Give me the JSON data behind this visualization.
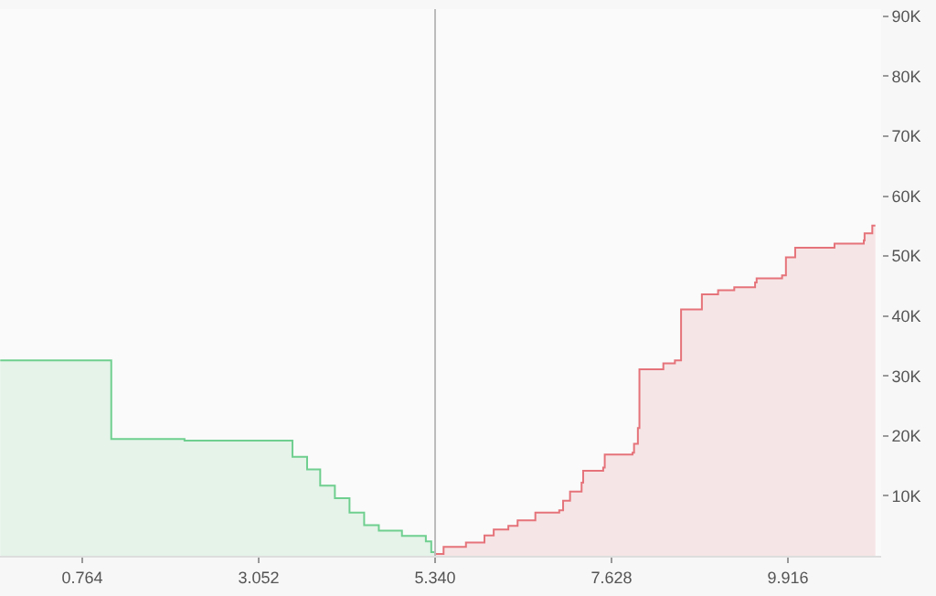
{
  "chart_data": {
    "type": "step",
    "series": [
      {
        "color": "#6fcf8f",
        "x": [
          -0.3,
          1.14,
          2.09,
          3.49,
          3.68,
          3.85,
          4.04,
          4.23,
          4.42,
          4.61,
          4.91,
          5.22,
          5.29,
          5.34
        ],
        "values": [
          32600,
          19500,
          19200,
          16500,
          14400,
          11700,
          9600,
          7200,
          5100,
          4200,
          3300,
          2400,
          600,
          0
        ]
      },
      {
        "color": "#e5737a",
        "x": [
          5.34,
          5.45,
          5.74,
          5.98,
          6.1,
          6.29,
          6.41,
          6.64,
          6.95,
          7.0,
          7.09,
          7.24,
          7.26,
          7.52,
          7.54,
          7.9,
          7.92,
          7.97,
          7.99,
          8.3,
          8.45,
          8.53,
          8.8,
          9.01,
          9.22,
          9.49,
          9.51,
          9.84,
          9.89,
          10.01,
          10.52,
          10.9,
          10.91,
          11.01,
          11.05
        ],
        "values": [
          300,
          1500,
          2200,
          3400,
          4400,
          5000,
          5900,
          7200,
          7600,
          9200,
          10700,
          12200,
          14200,
          14700,
          16900,
          17200,
          18700,
          21300,
          31100,
          32100,
          32600,
          41100,
          43600,
          44300,
          44800,
          45600,
          46300,
          46800,
          49800,
          51400,
          52100,
          52600,
          53800,
          55100,
          55100
        ]
      }
    ],
    "xlim": [
      -0.303,
      11.125
    ],
    "xticks": [
      0.764,
      3.052,
      {
        "value": 5.34,
        "label": "5.340"
      },
      7.628,
      9.916
    ],
    "ylim": [
      0,
      91200
    ],
    "yticks": [
      {
        "value": 10000,
        "label": "10K"
      },
      {
        "value": 20000,
        "label": "20K"
      },
      {
        "value": 30000,
        "label": "30K"
      },
      {
        "value": 40000,
        "label": "40K"
      },
      {
        "value": 50000,
        "label": "50K"
      },
      {
        "value": 60000,
        "label": "60K"
      },
      {
        "value": 70000,
        "label": "70K"
      },
      {
        "value": 80000,
        "label": "80K"
      },
      {
        "value": 90000,
        "label": "90K"
      }
    ],
    "ref_lines": [
      {
        "axis": "x",
        "value": 5.34,
        "color": "#bbbbbb"
      }
    ]
  }
}
